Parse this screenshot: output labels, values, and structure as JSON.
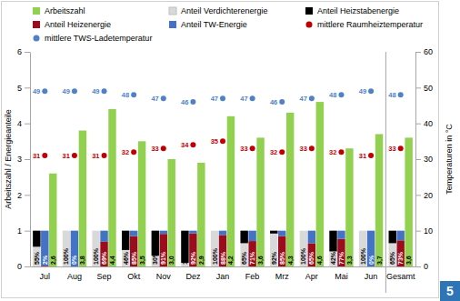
{
  "chart_data": {
    "type": "bar",
    "categories": [
      "Jul",
      "Aug",
      "Sep",
      "Okt",
      "Nov",
      "Dez",
      "Jan",
      "Feb",
      "Mrz",
      "Apr",
      "Mai",
      "Jun",
      "Gesamt"
    ],
    "y_label": "Arbeitszahl / Energieanteile",
    "y2_label": "Temperaturen in °C",
    "ylim": [
      0,
      6
    ],
    "yticks": [
      0,
      1,
      2,
      3,
      4,
      5,
      6
    ],
    "y2lim": [
      0,
      60
    ],
    "y2ticks": [
      0,
      10,
      20,
      30,
      40,
      50,
      60
    ],
    "legend": "top",
    "grid": false,
    "annotations": [
      "5"
    ],
    "series": [
      {
        "name": "Arbeitszahl",
        "type": "bar",
        "color": "#92d050",
        "data_labels": true,
        "values": [
          2.6,
          3.8,
          4.4,
          3.5,
          3.0,
          2.9,
          4.2,
          3.6,
          4.3,
          4.6,
          3.3,
          3.7,
          3.6
        ],
        "value_labels": [
          "2,6",
          "3,8",
          "4,4",
          "3,5",
          "3,0",
          "2,9",
          "4,2",
          "3,6",
          "4,3",
          "4,6",
          "3,3",
          "3,7",
          "3,6"
        ]
      },
      {
        "name": "Anteil Verdichterenergie",
        "type": "stacked_bar",
        "color": "#d9d9d9",
        "data_labels": true,
        "values": [
          0.55,
          1,
          1,
          0.46,
          0.3,
          0.1,
          1,
          0.65,
          0.92,
          1,
          0.42,
          1,
          0.65
        ],
        "value_labels": [
          "55%",
          "100%",
          "100%",
          "46%",
          "30%",
          "10%",
          "100%",
          "65%",
          "92%",
          "100%",
          "42%",
          "100%",
          "65%"
        ]
      },
      {
        "name": "Anteil Heizstabenergie",
        "type": "stacked_bar",
        "color": "#000000",
        "values": [
          0.45,
          0,
          0,
          0.54,
          0.7,
          0.9,
          0,
          0.35,
          0.08,
          0,
          0.58,
          0,
          0.35
        ]
      },
      {
        "name": "Anteil Heizenergie",
        "type": "stacked_bar",
        "color": "#9b0d1d",
        "data_labels": true,
        "values": [
          0.02,
          0,
          0.69,
          0.85,
          0.91,
          0.92,
          0.88,
          0.71,
          0.85,
          0.65,
          0.77,
          0,
          0.73
        ],
        "value_labels": [
          "2%",
          "0%",
          "69%",
          "85%",
          "91%",
          "92%",
          "88%",
          "71%",
          "85%",
          "65%",
          "77%",
          "0%",
          "73%"
        ]
      },
      {
        "name": "Anteil TW-Energie",
        "type": "stacked_bar",
        "color": "#4472c4",
        "values": [
          0.98,
          1,
          0.31,
          0.15,
          0.09,
          0.08,
          0.12,
          0.29,
          0.15,
          0.35,
          0.23,
          1,
          0.27
        ]
      },
      {
        "name": "mittlere Raumheiztemperatur",
        "type": "scatter",
        "axis": "y2",
        "marker": "circle",
        "color": "#c00000",
        "data_labels": true,
        "values": [
          31,
          31,
          31,
          32,
          33,
          34,
          35,
          33,
          32,
          33,
          32,
          31,
          33
        ]
      },
      {
        "name": "mittlere TWS-Ladetemperatur",
        "type": "scatter",
        "axis": "y2",
        "marker": "circle",
        "color": "#4f81c7",
        "data_labels": true,
        "values": [
          49,
          49,
          49,
          48,
          47,
          46,
          47,
          47,
          46,
          47,
          48,
          49,
          48
        ]
      }
    ]
  }
}
